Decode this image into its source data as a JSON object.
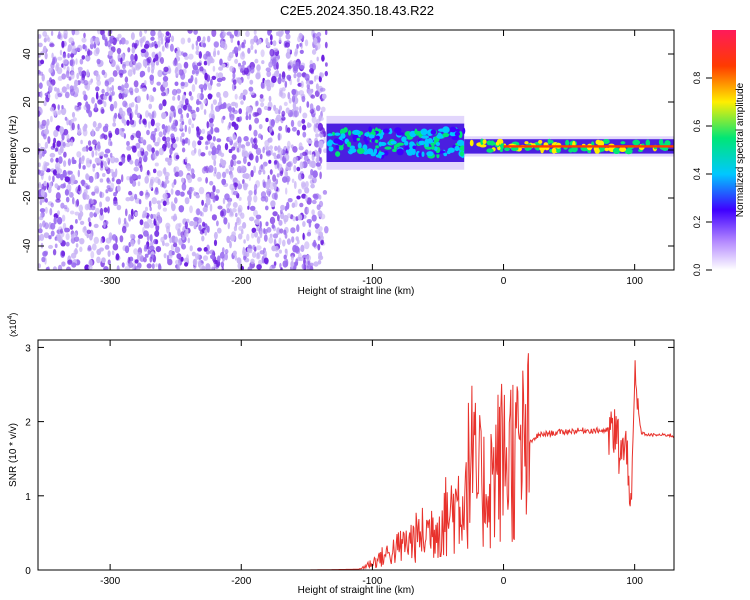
{
  "title": "C2E5.2024.350.18.43.R22",
  "chart_data": [
    {
      "type": "heatmap",
      "title": "C2E5.2024.350.18.43.R22",
      "xlabel": "Height of straight line (km)",
      "ylabel": "Frequency (Hz)",
      "xlim": [
        -355,
        130
      ],
      "ylim": [
        -50,
        50
      ],
      "x_ticks": [
        -300,
        -200,
        -100,
        0,
        100
      ],
      "y_ticks": [
        -40,
        -20,
        0,
        20,
        40
      ],
      "colorbar": {
        "label": "Normalized spectral amplitude",
        "range": [
          0,
          1
        ],
        "ticks": [
          0.0,
          0.2,
          0.4,
          0.6,
          0.8
        ]
      },
      "regions": [
        {
          "x_range": [
            -355,
            -135
          ],
          "freq_range": [
            -50,
            50
          ],
          "amplitude": 0.15
        },
        {
          "x_range": [
            -135,
            -30
          ],
          "freq_center": 3,
          "freq_halfwidth": 8,
          "amplitude": 0.35
        },
        {
          "x_range": [
            -30,
            130
          ],
          "freq_center": 1.5,
          "freq_halfwidth": 3,
          "amplitude": 0.55
        }
      ]
    },
    {
      "type": "line",
      "xlabel": "Height of straight line (km)",
      "ylabel": "SNR (10 * v/v)",
      "scale_label": "(x10",
      "scale_exp": "4",
      "xlim": [
        -355,
        130
      ],
      "ylim": [
        0,
        3.1
      ],
      "x_ticks": [
        -300,
        -200,
        -100,
        0,
        100
      ],
      "y_ticks": [
        0,
        1,
        2,
        3
      ],
      "color": "#e8322c",
      "series": [
        {
          "x": [
            -355,
            -300,
            -250,
            -200,
            -150,
            -110,
            -100,
            -90,
            -80,
            -70,
            -60,
            -50,
            -40,
            -30,
            -25,
            -20,
            -15,
            -10,
            -5,
            0,
            5,
            10,
            15,
            20,
            25,
            30,
            40,
            50,
            60,
            70,
            80,
            85,
            90,
            95,
            98,
            100,
            105,
            110,
            115,
            120,
            125,
            130
          ],
          "y": [
            0.0,
            0.0,
            0.0,
            0.0,
            0.0,
            0.01,
            0.1,
            0.2,
            0.3,
            0.4,
            0.5,
            0.6,
            0.8,
            1.0,
            1.5,
            1.2,
            1.1,
            1.2,
            1.4,
            1.5,
            1.6,
            1.5,
            1.6,
            1.7,
            1.8,
            1.83,
            1.85,
            1.87,
            1.88,
            1.88,
            1.88,
            1.8,
            1.6,
            1.5,
            0.9,
            2.5,
            1.85,
            1.82,
            1.82,
            1.82,
            1.82,
            1.8
          ]
        }
      ]
    }
  ]
}
